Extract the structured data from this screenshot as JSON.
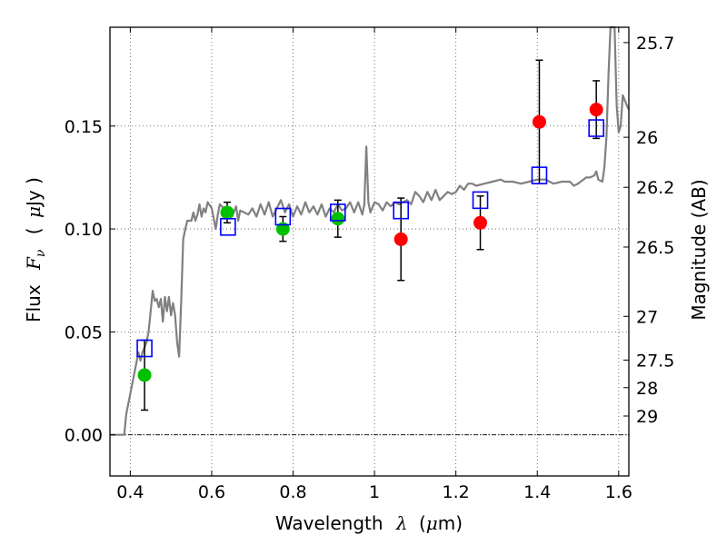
{
  "chart_data": {
    "type": "scatter",
    "xlabel": {
      "prefix": "Wavelength",
      "symbol": "λ",
      "unit_open": "(",
      "unit_mu": "μ",
      "unit_rest": "m)"
    },
    "ylabel": {
      "prefix": "Flux",
      "symbol": "F",
      "subscript": "ν",
      "unit_open": "(",
      "unit_mu": "μ",
      "unit_rest": "Jy )"
    },
    "y2label": "Magnitude (AB)",
    "xlim": [
      0.35,
      1.625
    ],
    "ylim": [
      -0.02,
      0.198
    ],
    "x_ticks": [
      {
        "value": 0.4,
        "label": "0.4"
      },
      {
        "value": 0.6,
        "label": "0.6"
      },
      {
        "value": 0.8,
        "label": "0.8"
      },
      {
        "value": 1.0,
        "label": "1"
      },
      {
        "value": 1.2,
        "label": "1.2"
      },
      {
        "value": 1.4,
        "label": "1.4"
      },
      {
        "value": 1.6,
        "label": "1.6"
      }
    ],
    "y_ticks": [
      {
        "value": 0.0,
        "label": "0.00"
      },
      {
        "value": 0.05,
        "label": "0.05"
      },
      {
        "value": 0.1,
        "label": "0.10"
      },
      {
        "value": 0.15,
        "label": "0.15"
      }
    ],
    "mag_ticks": [
      {
        "mag": 25.7,
        "label": "25.7"
      },
      {
        "mag": 26,
        "label": "26"
      },
      {
        "mag": 26.2,
        "label": "26.2"
      },
      {
        "mag": 26.5,
        "label": "26.5"
      },
      {
        "mag": 27,
        "label": "27"
      },
      {
        "mag": 27.5,
        "label": "27.5"
      },
      {
        "mag": 28,
        "label": "28"
      },
      {
        "mag": 29,
        "label": "29"
      }
    ],
    "grid": true,
    "model_spectrum": {
      "color": "#808080",
      "points": [
        [
          0.35,
          0.0
        ],
        [
          0.385,
          0.0
        ],
        [
          0.39,
          0.01
        ],
        [
          0.4,
          0.02
        ],
        [
          0.41,
          0.03
        ],
        [
          0.42,
          0.04
        ],
        [
          0.425,
          0.036
        ],
        [
          0.43,
          0.04
        ],
        [
          0.44,
          0.045
        ],
        [
          0.445,
          0.05
        ],
        [
          0.45,
          0.06
        ],
        [
          0.455,
          0.07
        ],
        [
          0.46,
          0.065
        ],
        [
          0.465,
          0.066
        ],
        [
          0.47,
          0.062
        ],
        [
          0.475,
          0.066
        ],
        [
          0.48,
          0.055
        ],
        [
          0.485,
          0.067
        ],
        [
          0.49,
          0.06
        ],
        [
          0.495,
          0.067
        ],
        [
          0.5,
          0.058
        ],
        [
          0.505,
          0.064
        ],
        [
          0.51,
          0.058
        ],
        [
          0.515,
          0.045
        ],
        [
          0.52,
          0.038
        ],
        [
          0.525,
          0.065
        ],
        [
          0.53,
          0.095
        ],
        [
          0.535,
          0.1
        ],
        [
          0.54,
          0.104
        ],
        [
          0.55,
          0.104
        ],
        [
          0.555,
          0.108
        ],
        [
          0.56,
          0.104
        ],
        [
          0.565,
          0.107
        ],
        [
          0.57,
          0.112
        ],
        [
          0.575,
          0.106
        ],
        [
          0.58,
          0.11
        ],
        [
          0.585,
          0.108
        ],
        [
          0.59,
          0.113
        ],
        [
          0.6,
          0.11
        ],
        [
          0.61,
          0.1
        ],
        [
          0.615,
          0.107
        ],
        [
          0.62,
          0.112
        ],
        [
          0.63,
          0.11
        ],
        [
          0.64,
          0.108
        ],
        [
          0.65,
          0.106
        ],
        [
          0.66,
          0.111
        ],
        [
          0.665,
          0.104
        ],
        [
          0.67,
          0.109
        ],
        [
          0.68,
          0.108
        ],
        [
          0.69,
          0.107
        ],
        [
          0.7,
          0.11
        ],
        [
          0.71,
          0.106
        ],
        [
          0.72,
          0.112
        ],
        [
          0.73,
          0.107
        ],
        [
          0.74,
          0.113
        ],
        [
          0.75,
          0.106
        ],
        [
          0.76,
          0.11
        ],
        [
          0.77,
          0.114
        ],
        [
          0.78,
          0.108
        ],
        [
          0.79,
          0.112
        ],
        [
          0.8,
          0.106
        ],
        [
          0.81,
          0.111
        ],
        [
          0.82,
          0.107
        ],
        [
          0.83,
          0.113
        ],
        [
          0.84,
          0.108
        ],
        [
          0.85,
          0.111
        ],
        [
          0.86,
          0.107
        ],
        [
          0.87,
          0.112
        ],
        [
          0.88,
          0.106
        ],
        [
          0.89,
          0.11
        ],
        [
          0.9,
          0.108
        ],
        [
          0.91,
          0.112
        ],
        [
          0.92,
          0.109
        ],
        [
          0.93,
          0.11
        ],
        [
          0.94,
          0.113
        ],
        [
          0.95,
          0.108
        ],
        [
          0.96,
          0.113
        ],
        [
          0.97,
          0.107
        ],
        [
          0.975,
          0.112
        ],
        [
          0.98,
          0.14
        ],
        [
          0.985,
          0.113
        ],
        [
          0.99,
          0.108
        ],
        [
          1.0,
          0.113
        ],
        [
          1.01,
          0.112
        ],
        [
          1.02,
          0.109
        ],
        [
          1.03,
          0.113
        ],
        [
          1.04,
          0.111
        ],
        [
          1.05,
          0.113
        ],
        [
          1.06,
          0.112
        ],
        [
          1.07,
          0.113
        ],
        [
          1.08,
          0.114
        ],
        [
          1.09,
          0.112
        ],
        [
          1.1,
          0.118
        ],
        [
          1.11,
          0.116
        ],
        [
          1.12,
          0.113
        ],
        [
          1.13,
          0.118
        ],
        [
          1.14,
          0.114
        ],
        [
          1.15,
          0.119
        ],
        [
          1.16,
          0.114
        ],
        [
          1.17,
          0.116
        ],
        [
          1.18,
          0.118
        ],
        [
          1.19,
          0.117
        ],
        [
          1.2,
          0.118
        ],
        [
          1.21,
          0.121
        ],
        [
          1.22,
          0.119
        ],
        [
          1.23,
          0.122
        ],
        [
          1.24,
          0.122
        ],
        [
          1.25,
          0.121
        ],
        [
          1.27,
          0.122
        ],
        [
          1.29,
          0.123
        ],
        [
          1.31,
          0.124
        ],
        [
          1.32,
          0.123
        ],
        [
          1.34,
          0.123
        ],
        [
          1.36,
          0.122
        ],
        [
          1.38,
          0.123
        ],
        [
          1.4,
          0.124
        ],
        [
          1.42,
          0.124
        ],
        [
          1.44,
          0.122
        ],
        [
          1.46,
          0.123
        ],
        [
          1.48,
          0.123
        ],
        [
          1.49,
          0.121
        ],
        [
          1.5,
          0.122
        ],
        [
          1.52,
          0.125
        ],
        [
          1.53,
          0.125
        ],
        [
          1.54,
          0.126
        ],
        [
          1.545,
          0.128
        ],
        [
          1.55,
          0.124
        ],
        [
          1.56,
          0.123
        ],
        [
          1.565,
          0.13
        ],
        [
          1.57,
          0.145
        ],
        [
          1.575,
          0.175
        ],
        [
          1.58,
          0.2
        ],
        [
          1.59,
          0.2
        ],
        [
          1.595,
          0.16
        ],
        [
          1.6,
          0.147
        ],
        [
          1.605,
          0.15
        ],
        [
          1.61,
          0.165
        ],
        [
          1.62,
          0.16
        ],
        [
          1.625,
          0.158
        ]
      ]
    },
    "observed": [
      {
        "x": 0.435,
        "y": 0.029,
        "yerr_lo": 0.017,
        "yerr_hi": 0.017,
        "color": "#00c000"
      },
      {
        "x": 0.638,
        "y": 0.108,
        "yerr_lo": 0.005,
        "yerr_hi": 0.005,
        "color": "#00c000"
      },
      {
        "x": 0.775,
        "y": 0.1,
        "yerr_lo": 0.006,
        "yerr_hi": 0.006,
        "color": "#00c000"
      },
      {
        "x": 0.91,
        "y": 0.105,
        "yerr_lo": 0.009,
        "yerr_hi": 0.009,
        "color": "#00c000"
      },
      {
        "x": 1.065,
        "y": 0.095,
        "yerr_lo": 0.02,
        "yerr_hi": 0.02,
        "color": "#ff0000"
      },
      {
        "x": 1.26,
        "y": 0.103,
        "yerr_lo": 0.013,
        "yerr_hi": 0.013,
        "color": "#ff0000"
      },
      {
        "x": 1.405,
        "y": 0.152,
        "yerr_lo": 0.03,
        "yerr_hi": 0.03,
        "color": "#ff0000"
      },
      {
        "x": 1.545,
        "y": 0.158,
        "yerr_lo": 0.014,
        "yerr_hi": 0.014,
        "color": "#ff0000"
      }
    ],
    "model_photometry": {
      "color": "#0000ff",
      "points": [
        [
          0.435,
          0.042
        ],
        [
          0.64,
          0.101
        ],
        [
          0.775,
          0.106
        ],
        [
          0.91,
          0.108
        ],
        [
          1.065,
          0.109
        ],
        [
          1.26,
          0.114
        ],
        [
          1.405,
          0.126
        ],
        [
          1.545,
          0.149
        ]
      ]
    }
  }
}
